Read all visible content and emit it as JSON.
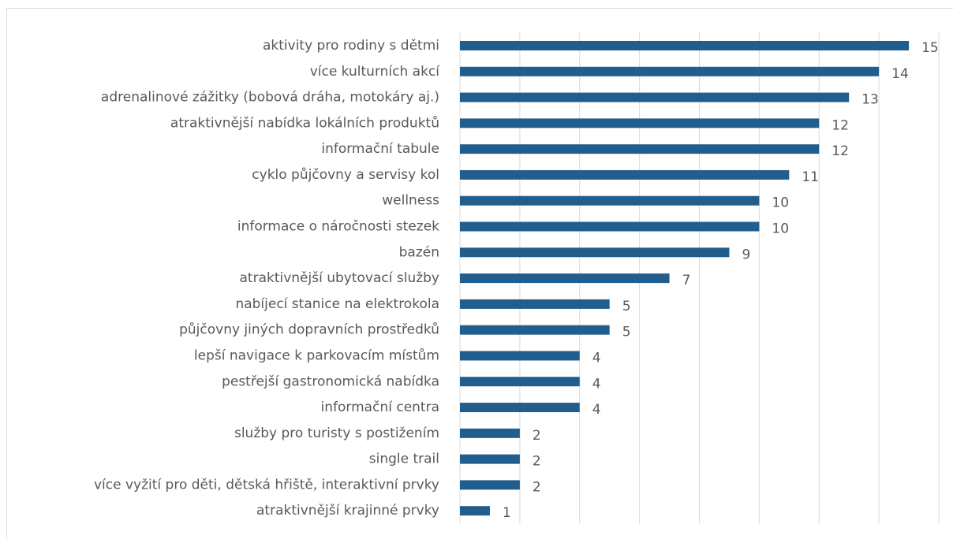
{
  "chart_data": {
    "type": "bar",
    "orientation": "horizontal",
    "categories": [
      "aktivity pro rodiny s dětmi",
      "více kulturních akcí",
      "adrenalinové zážitky (bobová dráha, motokáry aj.)",
      "atraktivnější nabídka lokálních produktů",
      "informační tabule",
      "cyklo půjčovny a servisy kol",
      "wellness",
      "informace o náročnosti stezek",
      "bazén",
      "atraktivnější ubytovací služby",
      "nabíjecí stanice na elektrokola",
      "půjčovny jiných dopravních prostředků",
      "lepší navigace k parkovacím místům",
      "pestřejší gastronomická nabídka",
      "informační centra",
      "služby pro turisty s postižením",
      "single trail",
      "více vyžití pro děti, dětská hřiště, interaktivní prvky",
      "atraktivnější krajinné prvky"
    ],
    "values": [
      15,
      14,
      13,
      12,
      12,
      11,
      10,
      10,
      9,
      7,
      5,
      5,
      4,
      4,
      4,
      2,
      2,
      2,
      1
    ],
    "color": "#215d8d",
    "xlim": [
      0,
      16
    ],
    "xticks": [
      0,
      2,
      4,
      6,
      8,
      10,
      12,
      14,
      16
    ],
    "grid": true
  }
}
